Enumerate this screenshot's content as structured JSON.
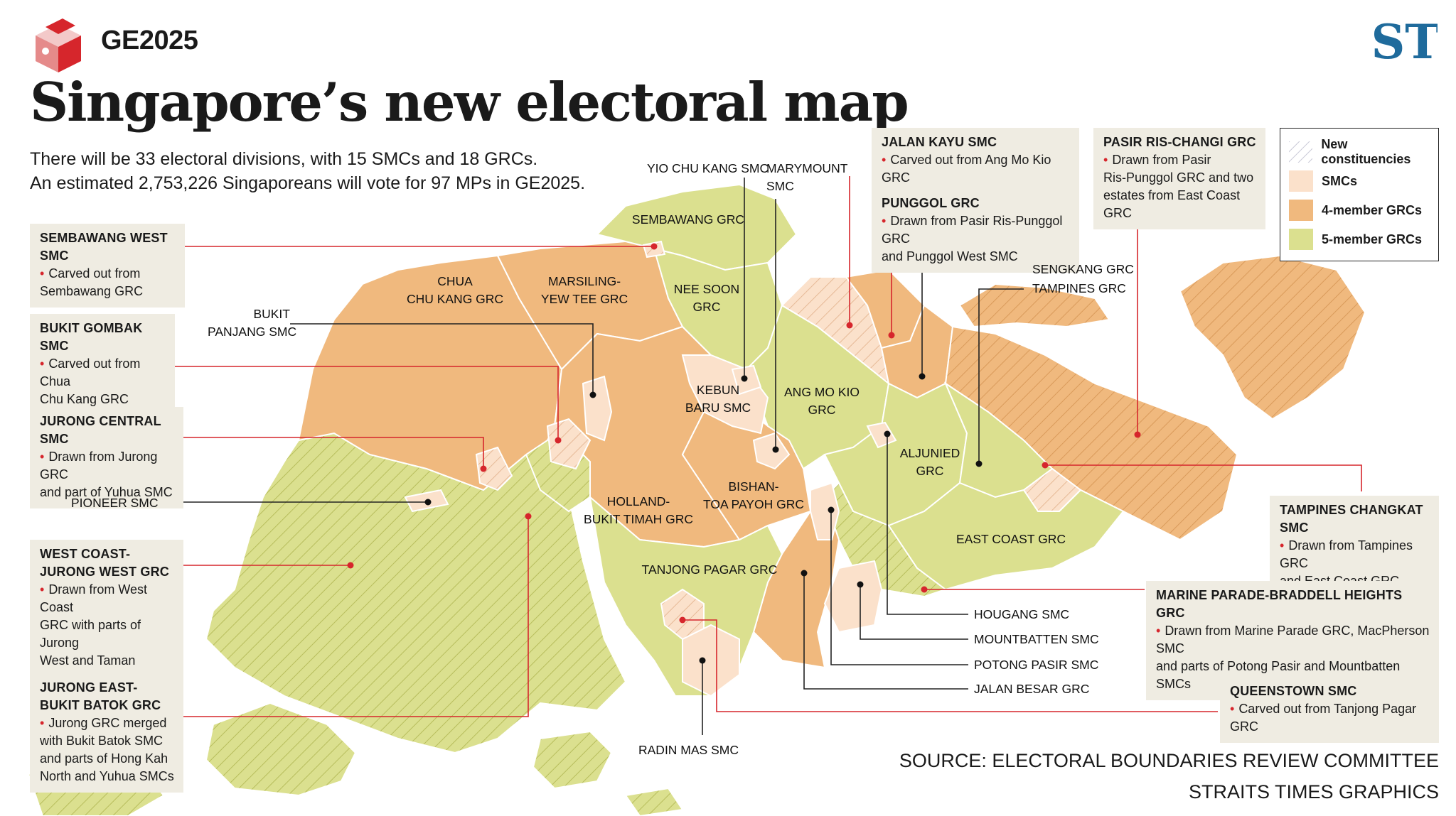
{
  "header": {
    "tag": "GE2025",
    "title": "Singapore’s new electoral map",
    "intro_line1": "There will be 33 electoral divisions, with 15 SMCs and 18 GRCs.",
    "intro_line2": "An estimated 2,753,226 Singaporeans will vote for 97 MPs in GE2025.",
    "logo_text": "ST"
  },
  "legend": {
    "items": [
      {
        "label": "New constituencies",
        "swatch": "hatched"
      },
      {
        "label": "SMCs",
        "color": "#fbe1cb"
      },
      {
        "label": "4-member GRCs",
        "color": "#f0b97e"
      },
      {
        "label": "5-member GRCs",
        "color": "#dbe08f"
      }
    ]
  },
  "colors": {
    "smc": "#fbe1cb",
    "grc4": "#f0b97e",
    "grc5": "#dbe08f",
    "callout_bg": "#efece2",
    "accent_red": "#d6262c"
  },
  "callouts": {
    "sembawang_west": {
      "title": "SEMBAWANG WEST SMC",
      "desc_1": "Carved out from",
      "desc_2": "Sembawang GRC"
    },
    "bukit_gombak": {
      "title": "BUKIT GOMBAK SMC",
      "desc_1": "Carved out from Chua",
      "desc_2": "Chu Kang GRC"
    },
    "jurong_central": {
      "title": "JURONG CENTRAL SMC",
      "desc_1": "Drawn from Jurong GRC",
      "desc_2": "and part of Yuhua SMC"
    },
    "west_coast": {
      "title_1": "WEST COAST-",
      "title_2": "JURONG WEST GRC",
      "desc_1": "Drawn from West Coast",
      "desc_2": "GRC with parts of Jurong",
      "desc_3": "West and Taman Jurong"
    },
    "jurong_east": {
      "title_1": "JURONG EAST-",
      "title_2": "BUKIT BATOK GRC",
      "desc_1": "Jurong GRC merged",
      "desc_2": "with Bukit Batok SMC",
      "desc_3": "and parts of Hong Kah",
      "desc_4": "North and Yuhua SMCs"
    },
    "jalan_kayu": {
      "title": "JALAN KAYU SMC",
      "desc_1": "Carved out from Ang Mo Kio GRC"
    },
    "punggol": {
      "title": "PUNGGOL GRC",
      "desc_1": "Drawn from Pasir Ris-Punggol GRC",
      "desc_2": "and Punggol West SMC"
    },
    "pasir_ris": {
      "title": "PASIR RIS-CHANGI GRC",
      "desc_1": "Drawn from Pasir",
      "desc_2": "Ris-Punggol GRC and two",
      "desc_3": "estates from East Coast GRC"
    },
    "tampines_changkat": {
      "title": "TAMPINES CHANGKAT SMC",
      "desc_1": "Drawn from Tampines GRC",
      "desc_2": "and East Coast GRC"
    },
    "marine_parade": {
      "title": "MARINE PARADE-BRADDELL HEIGHTS GRC",
      "desc_1": "Drawn from Marine Parade GRC, MacPherson SMC",
      "desc_2": "and parts of Potong Pasir and Mountbatten SMCs"
    },
    "queenstown": {
      "title": "QUEENSTOWN SMC",
      "desc_1": "Carved out from Tanjong Pagar GRC"
    }
  },
  "map_labels": {
    "chua_chu_kang_1": "CHUA",
    "chua_chu_kang_2": "CHU KANG GRC",
    "marsiling_1": "MARSILING-",
    "marsiling_2": "YEW TEE GRC",
    "sembawang": "SEMBAWANG GRC",
    "nee_soon_1": "NEE SOON",
    "nee_soon_2": "GRC",
    "kebun_baru_1": "KEBUN",
    "kebun_baru_2": "BARU SMC",
    "ang_mo_kio_1": "ANG MO KIO",
    "ang_mo_kio_2": "GRC",
    "aljunied_1": "ALJUNIED",
    "aljunied_2": "GRC",
    "bishan_1": "BISHAN-",
    "bishan_2": "TOA PAYOH GRC",
    "holland_1": "HOLLAND-",
    "holland_2": "BUKIT TIMAH GRC",
    "tanjong_pagar": "TANJONG PAGAR GRC",
    "east_coast": "EAST COAST GRC"
  },
  "external_labels": {
    "yio_chu_kang": "YIO CHU KANG SMC",
    "marymount_1": "MARYMOUNT",
    "marymount_2": "SMC",
    "bukit_panjang_1": "BUKIT",
    "bukit_panjang_2": "PANJANG SMC",
    "pioneer": "PIONEER SMC",
    "sengkang": "SENGKANG GRC",
    "tampines": "TAMPINES GRC",
    "hougang": "HOUGANG SMC",
    "mountbatten": "MOUNTBATTEN SMC",
    "potong_pasir": "POTONG PASIR SMC",
    "jalan_besar": "JALAN BESAR GRC",
    "radin_mas": "RADIN MAS SMC"
  },
  "footer": {
    "source": "SOURCE: ELECTORAL BOUNDARIES REVIEW COMMITTEE",
    "credit": "STRAITS TIMES GRAPHICS"
  }
}
